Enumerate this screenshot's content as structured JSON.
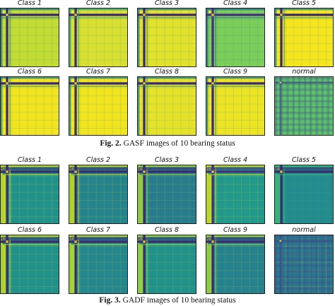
{
  "figures": [
    {
      "caption_label": "Fig. 2.",
      "caption_text": "GASF images of 10 bearing status",
      "panels": [
        {
          "title": "Class 1",
          "colors": {
            "bg": "#c3dc33",
            "stripe": "#3b2a70",
            "accent": "#2a7f8e",
            "dot": "#e8f04a"
          }
        },
        {
          "title": "Class 2",
          "colors": {
            "bg": "#d9e032",
            "stripe": "#3b2a70",
            "accent": "#35a085",
            "dot": "#fde725"
          }
        },
        {
          "title": "Class 3",
          "colors": {
            "bg": "#e2e12c",
            "stripe": "#3b2a70",
            "accent": "#2a7f8e",
            "dot": "#fde725"
          }
        },
        {
          "title": "Class 4",
          "colors": {
            "bg": "#7cce5a",
            "stripe": "#45307e",
            "accent": "#2c6e8e",
            "dot": "#fde725"
          }
        },
        {
          "title": "Class 5",
          "colors": {
            "bg": "#f6e61f",
            "stripe": "#3b2a70",
            "accent": "#2a8a8a",
            "dot": "#fde725"
          }
        },
        {
          "title": "Class 6",
          "colors": {
            "bg": "#f2e51f",
            "stripe": "#3b2a70",
            "accent": "#2a8a8a",
            "dot": "#fde725"
          }
        },
        {
          "title": "Class 7",
          "colors": {
            "bg": "#f2e51f",
            "stripe": "#3b2a70",
            "accent": "#2a8a8a",
            "dot": "#fde725"
          }
        },
        {
          "title": "Class 8",
          "colors": {
            "bg": "#e6e22a",
            "stripe": "#3b2a70",
            "accent": "#2a8a8a",
            "dot": "#fde725"
          }
        },
        {
          "title": "Class 9",
          "colors": {
            "bg": "#ece424",
            "stripe": "#3b2a70",
            "accent": "#2a8a8a",
            "dot": "#fde725"
          }
        },
        {
          "title": "normal",
          "colors": {
            "bg": "#5fc36b",
            "stripe": "#3e4a89",
            "accent": "#2d6f8e",
            "dot": "#9ad740"
          }
        }
      ]
    },
    {
      "caption_label": "Fig. 3.",
      "caption_text": "GADF images of 10 bearing status",
      "panels": [
        {
          "title": "Class 1",
          "colors": {
            "bg": "#21918c",
            "stripe": "#3b2a70",
            "accent": "#d2e21b",
            "dot": "#fde725"
          }
        },
        {
          "title": "Class 2",
          "colors": {
            "bg": "#25838e",
            "stripe": "#3b2a70",
            "accent": "#c8e020",
            "dot": "#fde725"
          }
        },
        {
          "title": "Class 3",
          "colors": {
            "bg": "#287c8e",
            "stripe": "#3b2a70",
            "accent": "#a5db36",
            "dot": "#fde725"
          }
        },
        {
          "title": "Class 4",
          "colors": {
            "bg": "#22978b",
            "stripe": "#45307e",
            "accent": "#d8e219",
            "dot": "#fde725"
          }
        },
        {
          "title": "Class 5",
          "colors": {
            "bg": "#238a8d",
            "stripe": "#3b2a70",
            "accent": "#3cbb75",
            "dot": "#fde725"
          }
        },
        {
          "title": "Class 6",
          "colors": {
            "bg": "#21918c",
            "stripe": "#3b2a70",
            "accent": "#c8e020",
            "dot": "#fde725"
          }
        },
        {
          "title": "Class 7",
          "colors": {
            "bg": "#24868e",
            "stripe": "#3b2a70",
            "accent": "#bde02a",
            "dot": "#fde725"
          }
        },
        {
          "title": "Class 8",
          "colors": {
            "bg": "#21918c",
            "stripe": "#3b2a70",
            "accent": "#a5db36",
            "dot": "#fde725"
          }
        },
        {
          "title": "Class 9",
          "colors": {
            "bg": "#26818e",
            "stripe": "#3b2a70",
            "accent": "#a5db36",
            "dot": "#fde725"
          }
        },
        {
          "title": "normal",
          "colors": {
            "bg": "#2a788e",
            "stripe": "#3e4a89",
            "accent": "#fde725",
            "dot": "#c8e020"
          }
        }
      ]
    }
  ]
}
